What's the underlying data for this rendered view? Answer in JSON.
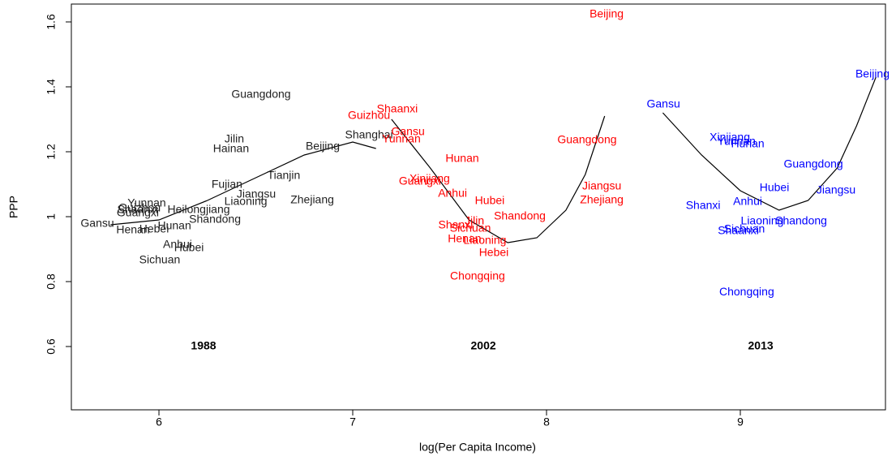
{
  "chart_data": {
    "type": "scatter",
    "x_label": "log(Per Capita Income)",
    "y_label": "PPP",
    "xlim": [
      5.548,
      9.749
    ],
    "ylim": [
      0.405,
      1.655
    ],
    "xticks": [
      6,
      7,
      8,
      9
    ],
    "yticks": [
      0.6,
      0.8,
      1.0,
      1.2,
      1.4,
      1.6
    ],
    "annotations": [
      {
        "text": "1988",
        "x": 6.23,
        "y": 0.6
      },
      {
        "text": "2002",
        "x": 7.674,
        "y": 0.6
      },
      {
        "text": "2013",
        "x": 9.105,
        "y": 0.6
      }
    ],
    "series": [
      {
        "color": "#222222",
        "labels": [
          "Guangdong",
          "Jilin",
          "Hainan",
          "Beijing",
          "Shanghai",
          "Tianjin",
          "Fujian",
          "Jiangsu",
          "Liaoning",
          "Zhejiang",
          "Shandong",
          "Heilongjiang",
          "Yunnan",
          "Guangxi",
          "Shaanxi",
          "Guizhou",
          "Gansu",
          "Henan",
          "Hebei",
          "Hunan",
          "Anhui",
          "Hubei",
          "Sichuan"
        ],
        "x": [
          6.527,
          6.389,
          6.372,
          6.845,
          7.084,
          6.644,
          6.351,
          6.502,
          6.448,
          6.791,
          6.289,
          6.205,
          5.937,
          5.891,
          5.89,
          5.9,
          5.682,
          5.866,
          5.975,
          6.08,
          6.096,
          6.155,
          6.004
        ],
        "values": [
          1.375,
          1.238,
          1.208,
          1.215,
          1.25,
          1.125,
          1.098,
          1.068,
          1.045,
          1.05,
          0.99,
          1.02,
          1.04,
          1.01,
          1.02,
          1.025,
          0.978,
          0.958,
          0.96,
          0.97,
          0.913,
          0.903,
          0.865
        ],
        "curve": {
          "x": [
            5.75,
            6.0,
            6.25,
            6.5,
            6.75,
            7.0,
            7.12
          ],
          "y": [
            0.975,
            0.99,
            1.05,
            1.12,
            1.19,
            1.23,
            1.21
          ]
        }
      },
      {
        "color": "#ff0000",
        "labels": [
          "Beijing",
          "Shaanxi",
          "Guizhou",
          "Gansu",
          "Yunnan",
          "Guangdong",
          "Hunan",
          "Guangxi",
          "Xinjiang",
          "Jiangsu",
          "Zhejiang",
          "Anhui",
          "Hubei",
          "Shandong",
          "Shanxi",
          "Jilin",
          "Sichuan",
          "Henan",
          "Liaoning",
          "Hebei",
          "Chongqing"
        ],
        "x": [
          8.31,
          7.23,
          7.084,
          7.285,
          7.251,
          8.209,
          7.565,
          7.347,
          7.397,
          8.285,
          8.285,
          7.515,
          7.707,
          7.862,
          7.531,
          7.628,
          7.607,
          7.577,
          7.682,
          7.728,
          7.644
        ],
        "values": [
          1.6225,
          1.33,
          1.31,
          1.26,
          1.238,
          1.235,
          1.178,
          1.108,
          1.115,
          1.093,
          1.05,
          1.07,
          1.048,
          1.0,
          0.973,
          0.985,
          0.963,
          0.93,
          0.925,
          0.888,
          0.815
        ],
        "curve": {
          "x": [
            7.2,
            7.4,
            7.6,
            7.8,
            7.95,
            8.1,
            8.2,
            8.3
          ],
          "y": [
            1.3,
            1.15,
            0.99,
            0.92,
            0.935,
            1.02,
            1.13,
            1.31
          ]
        }
      },
      {
        "color": "#0000ff",
        "labels": [
          "Beijing",
          "Gansu",
          "Xinjiang",
          "Yunnan",
          "Hunan",
          "Guangdong",
          "Jiangsu",
          "Hubei",
          "Anhui",
          "Shanxi",
          "Liaoning",
          "Shandong",
          "Sichuan",
          "Shaanxi",
          "Chongqing"
        ],
        "x": [
          9.682,
          8.603,
          8.946,
          8.98,
          9.038,
          9.377,
          9.494,
          9.176,
          9.038,
          8.808,
          9.113,
          9.314,
          9.021,
          8.99,
          9.033
        ],
        "values": [
          1.4375,
          1.345,
          1.243,
          1.23,
          1.223,
          1.16,
          1.08,
          1.088,
          1.045,
          1.033,
          0.985,
          0.985,
          0.96,
          0.955,
          0.767
        ],
        "curve": {
          "x": [
            8.6,
            8.8,
            9.0,
            9.2,
            9.35,
            9.5,
            9.6,
            9.7
          ],
          "y": [
            1.32,
            1.19,
            1.08,
            1.02,
            1.05,
            1.15,
            1.28,
            1.43
          ]
        }
      }
    ]
  }
}
